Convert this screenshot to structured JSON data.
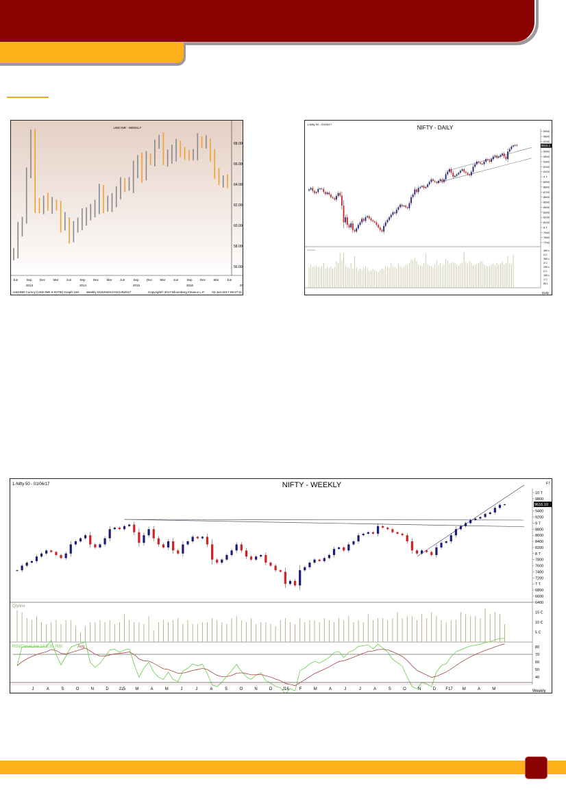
{
  "colors": {
    "brand_red": "#8b0203",
    "brand_orange": "#fdb01a",
    "up": "#1b1b7a",
    "down": "#d42222",
    "rsi": "#66cc44",
    "rsi_avg": "#a04a44"
  },
  "chart_data": [
    {
      "type": "ohlc",
      "title": "USD INR - WEEKLY",
      "ylim": [
        55,
        69
      ],
      "yticks": [
        "56.0000",
        "58.0000",
        "60.0000",
        "62.0000",
        "64.0000",
        "66.0000",
        "68.0000"
      ],
      "ytick_values": [
        56,
        58,
        60,
        62,
        64,
        66,
        68
      ],
      "month_labels": [
        "Jun",
        "Sep",
        "Dec",
        "Mar",
        "Jun",
        "Sep",
        "Dec",
        "Mar",
        "Jun",
        "Sep",
        "Dec",
        "Mar",
        "Jun",
        "Sep",
        "Dec",
        "Mar",
        "Jun"
      ],
      "year_labels": [
        "2013",
        "2014",
        "2015",
        "2016",
        "2017"
      ],
      "footer_left": "USDINR Curncy (USD-INR X-RATE) Graph 12G",
      "footer_mid": "Weekly 03JUN2013-02JUN2017",
      "footer_copy": "Copyright© 2017 Bloomberg Finance L.P.",
      "footer_date": "02-Jun-2017 09:27:11",
      "closes": [
        57.5,
        59.5,
        60.5,
        65,
        68.8,
        62,
        61.5,
        62.5,
        62,
        62.2,
        62,
        60,
        60.5,
        59,
        60,
        60.2,
        60.8,
        61.2,
        61.4,
        62,
        63.3,
        62,
        62.2,
        62.5,
        63,
        64,
        63.8,
        63.8,
        65.5,
        66.2,
        65,
        66.5,
        66.3,
        67.8,
        68.4,
        66.5,
        66.5,
        67,
        67.8,
        67.1,
        67,
        66.7,
        66.8,
        68.2,
        67.9,
        68,
        66.8,
        65.2,
        64.3,
        64.5,
        64.4
      ]
    },
    {
      "type": "candlestick",
      "header": "1-Nifty 50 - 01/06/17",
      "title": "NIFTY - DAILY",
      "ylim": [
        7650,
        9950
      ],
      "yticks": [
        "9900",
        "9800",
        "9700",
        "9500",
        "9400",
        "9300",
        "9200",
        "9100",
        "9 T",
        "8900",
        "8800",
        "8700",
        "8600",
        "8500",
        "8400",
        "8300",
        "8200",
        "8100",
        "8 T",
        "7900",
        "7800",
        "7700"
      ],
      "ytick_values": [
        9900,
        9800,
        9700,
        9500,
        9400,
        9300,
        9200,
        9100,
        9000,
        8900,
        8800,
        8700,
        8600,
        8500,
        8400,
        8300,
        8200,
        8100,
        8000,
        7900,
        7800,
        7700
      ],
      "last_price": "9616.1",
      "volume_label": "Qtyline",
      "volume_ticks": [
        "450 L",
        "4 C",
        "350 L",
        "3 C",
        "250 L",
        "2 C",
        "150 L",
        "1 C",
        "50 L"
      ],
      "volume_tick_values": [
        450,
        400,
        350,
        300,
        250,
        200,
        150,
        100,
        50
      ],
      "period_label": "Daily",
      "closes": [
        8750,
        8780,
        8720,
        8680,
        8700,
        8760,
        8770,
        8760,
        8700,
        8660,
        8690,
        8650,
        8600,
        8580,
        8550,
        8620,
        8680,
        8630,
        8430,
        8100,
        8200,
        8050,
        8000,
        8080,
        7950,
        7920,
        7980,
        8050,
        8100,
        8170,
        8130,
        8200,
        8220,
        8180,
        8140,
        8120,
        8100,
        8050,
        8000,
        7950,
        7920,
        8030,
        8100,
        8150,
        8200,
        8250,
        8300,
        8280,
        8350,
        8400,
        8450,
        8420,
        8430,
        8400,
        8380,
        8480,
        8600,
        8650,
        8750,
        8700,
        8780,
        8800,
        8820,
        8780,
        8800,
        8850,
        8900,
        8950,
        8920,
        8900,
        8880,
        8920,
        8950,
        8900,
        8950,
        9050,
        9100,
        9150,
        9080,
        9000,
        9020,
        9050,
        9080,
        9120,
        9150,
        9100,
        9080,
        9050,
        9030,
        9100,
        9200,
        9250,
        9300,
        9280,
        9260,
        9250,
        9300,
        9350,
        9330,
        9300,
        9350,
        9400,
        9420,
        9380,
        9400,
        9430,
        9460,
        9400,
        9350,
        9500,
        9550,
        9600,
        9620,
        9630,
        9616
      ],
      "volumes": [
        240,
        280,
        250,
        260,
        270,
        250,
        240,
        260,
        300,
        230,
        250,
        240,
        260,
        230,
        250,
        320,
        300,
        420,
        330,
        420,
        270,
        250,
        240,
        300,
        230,
        380,
        250,
        210,
        230,
        220,
        240,
        260,
        240,
        200,
        210,
        230,
        220,
        200,
        190,
        210,
        230,
        220,
        260,
        250,
        240,
        300,
        260,
        250,
        230,
        290,
        260,
        240,
        250,
        280,
        270,
        300,
        340,
        330,
        360,
        320,
        280,
        270,
        260,
        300,
        420,
        290,
        270,
        260,
        250,
        280,
        330,
        270,
        300,
        260,
        280,
        350,
        330,
        290,
        300,
        310,
        300,
        280,
        270,
        290,
        300,
        440,
        310,
        290,
        320,
        300,
        270,
        280,
        290,
        300,
        330,
        320,
        280,
        270,
        260,
        270,
        280,
        290,
        270,
        300,
        280,
        290,
        320,
        280,
        300,
        380,
        290,
        280,
        400
      ],
      "trendlines": [
        {
          "x1": 75,
          "y1": 9110,
          "x2": 122,
          "y2": 9580
        },
        {
          "x1": 70,
          "y1": 8880,
          "x2": 122,
          "y2": 9370
        }
      ]
    },
    {
      "type": "candlestick",
      "header": "1-Nifty 50 - 01/06/17",
      "title": "NIFTY - WEEKLY",
      "corner": "F7",
      "ylim": [
        6400,
        10150
      ],
      "yticks": [
        "10 T",
        "9800",
        "9400",
        "9200",
        "9 T",
        "8800",
        "8600",
        "8400",
        "8200",
        "8 T",
        "7800",
        "7600",
        "7400",
        "7200",
        "7 T",
        "6800",
        "6600",
        "6400"
      ],
      "ytick_values": [
        10000,
        9800,
        9400,
        9200,
        9000,
        8800,
        8600,
        8400,
        8200,
        8000,
        7800,
        7600,
        7400,
        7200,
        7000,
        6800,
        6600,
        6400
      ],
      "last_price": "9616.10",
      "volume_label": "Qtyline",
      "volume_ticks": [
        "15 C",
        "10 C",
        "5 C"
      ],
      "volume_tick_values": [
        15,
        10,
        5
      ],
      "rsi_label": "RSI(CloseLine:14:E:9)_RSI",
      "rsi_avg_label": "Avg",
      "rsi_ticks": [
        "80",
        "70",
        "60",
        "50",
        "40"
      ],
      "rsi_tick_values": [
        80,
        70,
        60,
        50,
        40
      ],
      "x_labels": [
        "J",
        "A",
        "S",
        "O",
        "N",
        "D",
        "J15",
        "M",
        "A",
        "M",
        "J",
        "J",
        "A",
        "S",
        "O",
        "N",
        "D",
        "J16",
        "F",
        "M",
        "A",
        "J",
        "J",
        "A",
        "S",
        "O",
        "N",
        "D",
        "F17",
        "M",
        "A",
        "M"
      ],
      "period_label": "Weekly",
      "closes": [
        7450,
        7600,
        7700,
        7750,
        7900,
        8000,
        8100,
        8050,
        7950,
        7850,
        8000,
        8300,
        8400,
        8500,
        8600,
        8300,
        8200,
        8300,
        8500,
        8800,
        8850,
        8800,
        8900,
        8950,
        8700,
        8350,
        8600,
        8800,
        8500,
        8300,
        8200,
        8400,
        8100,
        8000,
        8300,
        8400,
        8550,
        8500,
        8550,
        8300,
        7800,
        7700,
        7800,
        7950,
        8100,
        8300,
        8100,
        7900,
        7800,
        7900,
        7950,
        7700,
        7600,
        7450,
        7400,
        7000,
        7100,
        6950,
        7450,
        7550,
        7700,
        7800,
        7750,
        7850,
        7950,
        8150,
        8200,
        8100,
        8300,
        8400,
        8600,
        8650,
        8700,
        8650,
        8900,
        8850,
        8800,
        8700,
        8650,
        8600,
        8400,
        8100,
        8000,
        8100,
        8050,
        7950,
        8200,
        8350,
        8400,
        8600,
        8800,
        8900,
        9000,
        9100,
        9150,
        9200,
        9300,
        9350,
        9500,
        9600,
        9616
      ],
      "volumes": [
        16,
        15,
        12,
        11,
        13,
        10,
        9,
        10,
        11,
        9,
        11,
        11,
        8,
        5,
        8,
        10,
        10,
        11,
        10,
        11,
        9,
        10,
        14,
        11,
        10,
        10,
        9,
        13,
        6,
        10,
        11,
        10,
        11,
        12,
        9,
        11,
        9,
        9,
        10,
        10,
        12,
        11,
        10,
        9,
        12,
        13,
        11,
        10,
        12,
        9,
        10,
        10,
        9,
        8,
        11,
        12,
        10,
        9,
        12,
        10,
        11,
        11,
        10,
        12,
        11,
        10,
        12,
        11,
        13,
        10,
        11,
        10,
        14,
        11,
        12,
        12,
        11,
        12,
        15,
        12,
        13,
        13,
        11,
        14,
        12,
        15,
        13,
        11,
        10,
        11,
        11,
        15,
        14,
        13,
        13,
        12,
        17,
        14,
        15,
        14,
        9
      ],
      "trendlines": [
        {
          "x1": 22,
          "y1": 9120,
          "x2": 104,
          "y2": 9100
        },
        {
          "x1": 22,
          "y1": 9120,
          "x2": 104,
          "y2": 8880
        },
        {
          "x1": 82,
          "y1": 7900,
          "x2": 104,
          "y2": 10250
        }
      ]
    }
  ]
}
